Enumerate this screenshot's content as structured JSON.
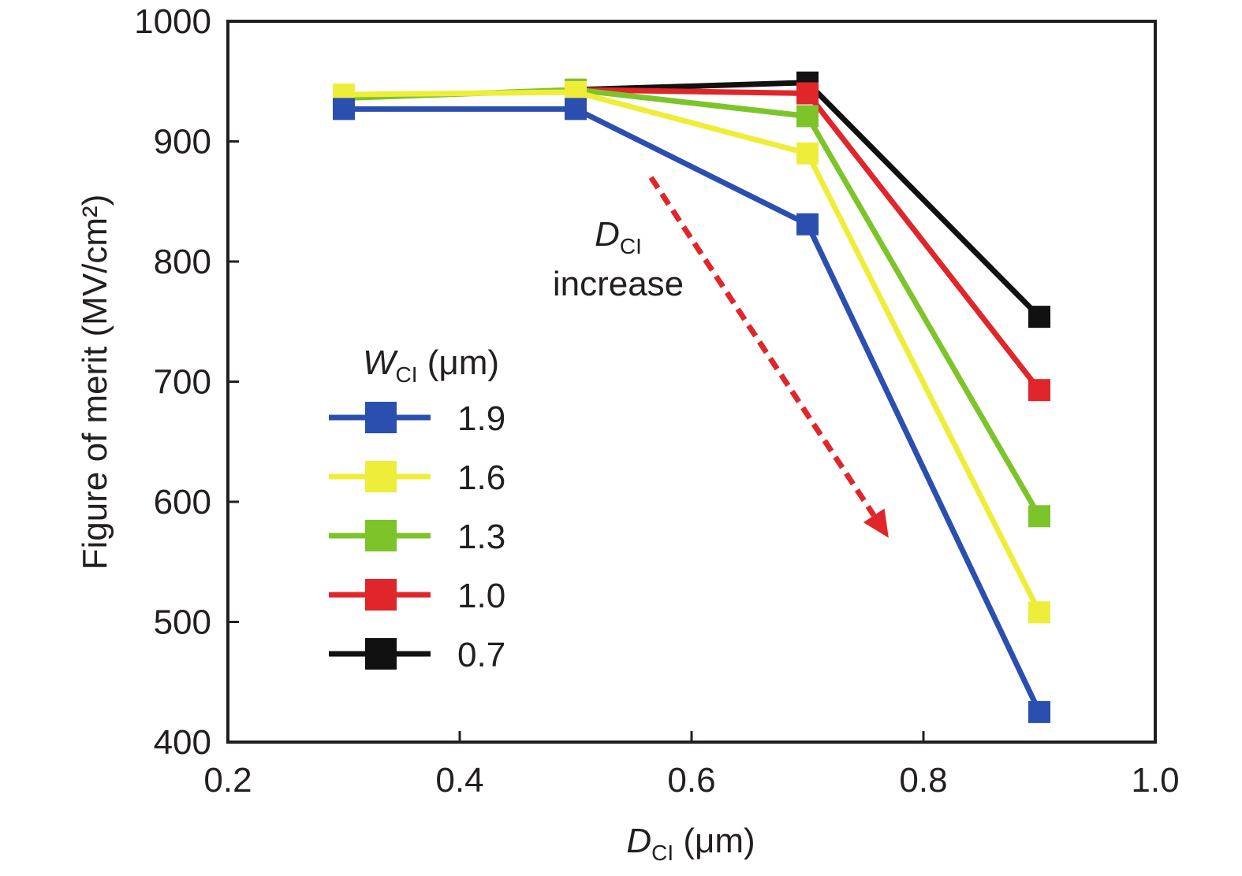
{
  "chart_data": {
    "type": "line",
    "title": "",
    "xlabel": {
      "main": "D",
      "sub": "CI",
      "unit": " (μm)"
    },
    "ylabel": "Figure of merit (MV/cm²)",
    "xlim": [
      0.2,
      1.0
    ],
    "ylim": [
      400,
      1000
    ],
    "xticks": [
      0.2,
      0.4,
      0.6,
      0.8,
      1.0
    ],
    "xtick_labels": [
      "0.2",
      "0.4",
      "0.6",
      "0.8",
      "1.0"
    ],
    "yticks": [
      400,
      500,
      600,
      700,
      800,
      900,
      1000
    ],
    "ytick_labels": [
      "400",
      "500",
      "600",
      "700",
      "800",
      "900",
      "1000"
    ],
    "grid": false,
    "legend": {
      "title_main": "W",
      "title_sub": "CI",
      "title_unit": " (μm)",
      "placement": "center-left"
    },
    "x": [
      0.3,
      0.5,
      0.7,
      0.9
    ],
    "series": [
      {
        "name": "1.9",
        "color": "#2b4fae",
        "values": [
          927,
          927,
          831,
          425
        ]
      },
      {
        "name": "1.6",
        "color": "#eeee3a",
        "values": [
          939,
          941,
          890,
          508
        ]
      },
      {
        "name": "1.3",
        "color": "#7dc42a",
        "values": [
          936,
          943,
          921,
          588
        ]
      },
      {
        "name": "1.0",
        "color": "#e0262a",
        "values": [
          null,
          943,
          940,
          693
        ]
      },
      {
        "name": "0.7",
        "color": "#111111",
        "values": [
          null,
          943,
          949,
          754
        ]
      }
    ],
    "annotations": [
      {
        "text_main": "D",
        "text_sub": "CI",
        "text_line2": "increase",
        "arrow_color": "#e0262a",
        "arrow_style": "dashed",
        "arrow_from": [
          0.565,
          870
        ],
        "arrow_to": [
          0.77,
          570
        ]
      }
    ]
  }
}
